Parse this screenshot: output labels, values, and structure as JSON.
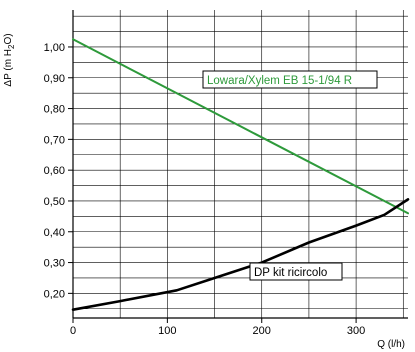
{
  "chart_data": {
    "type": "line",
    "xlabel": "Q (l/h)",
    "ylabel": "ΔP (m H₂O)",
    "xlim": [
      0,
      355
    ],
    "ylim": [
      0.12,
      1.12
    ],
    "x_ticks": [
      0,
      100,
      200,
      300
    ],
    "x_tick_labels": [
      "0",
      "100",
      "200",
      "300"
    ],
    "y_ticks": [
      0.2,
      0.3,
      0.4,
      0.5,
      0.6,
      0.7,
      0.8,
      0.9,
      1.0
    ],
    "y_tick_labels": [
      "0,20",
      "0,30",
      "0,40",
      "0,50",
      "0,60",
      "0,70",
      "0,80",
      "0,90",
      "1,00"
    ],
    "grid": true,
    "series": [
      {
        "name": "Lowara/Xylem EB 15-1/94 R",
        "color": "#2e9a3b",
        "x": [
          0,
          355
        ],
        "y": [
          1.025,
          0.46
        ]
      },
      {
        "name": "DP kit ricircolo",
        "color": "#000000",
        "x": [
          0,
          50,
          110,
          150,
          200,
          250,
          300,
          330,
          355
        ],
        "y": [
          0.147,
          0.175,
          0.21,
          0.25,
          0.3,
          0.365,
          0.42,
          0.455,
          0.505
        ]
      }
    ]
  }
}
